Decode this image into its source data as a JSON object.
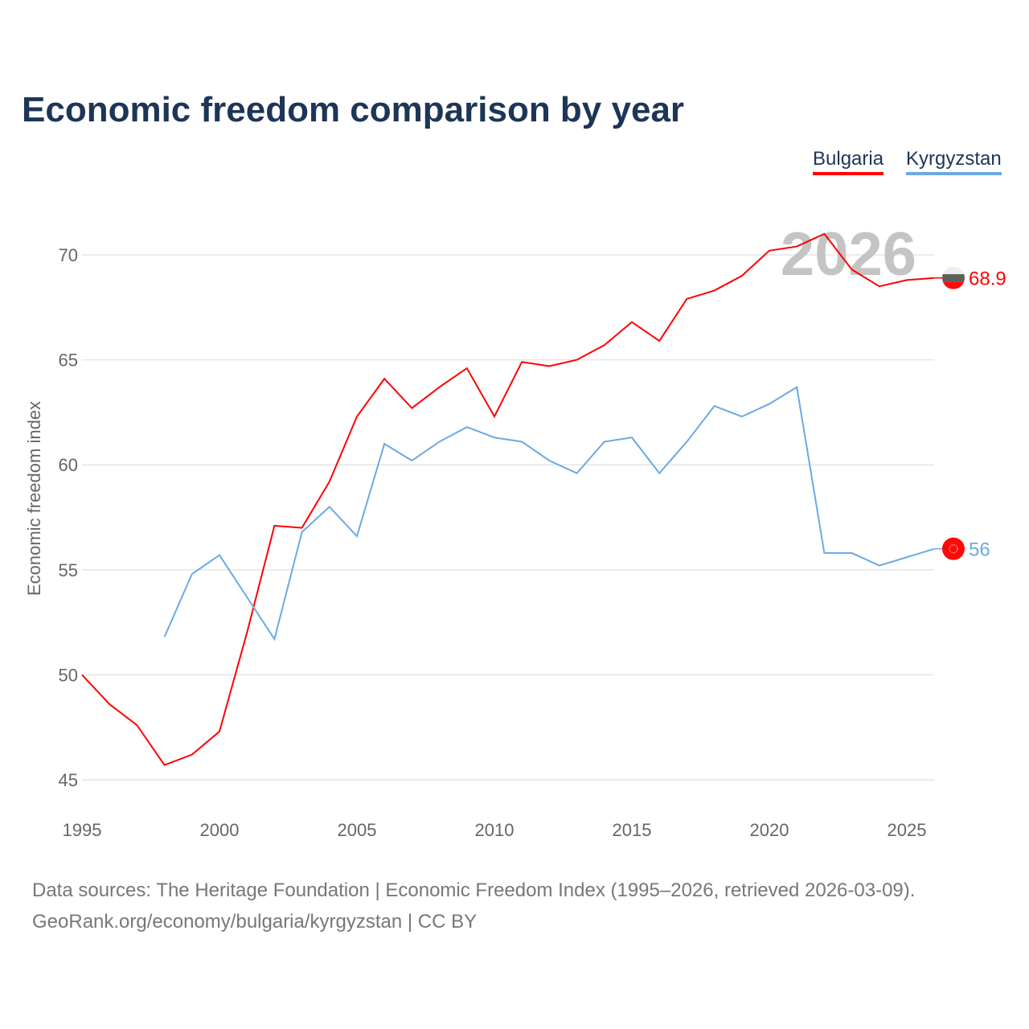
{
  "chart_data": {
    "type": "line",
    "title": "Economic freedom comparison by year",
    "ylabel": "Economic freedom index",
    "xlabel": "",
    "xlim": [
      1995,
      2026
    ],
    "ylim": [
      45,
      71.5
    ],
    "xticks": [
      1995,
      2000,
      2005,
      2010,
      2015,
      2020,
      2025
    ],
    "yticks": [
      45,
      50,
      55,
      60,
      65,
      70
    ],
    "grid": true,
    "legend_position": "top-right",
    "current_year_label": "2026",
    "series": [
      {
        "name": "Bulgaria",
        "color": "#ff0000",
        "end_label": "68.9",
        "x": [
          1995,
          1996,
          1997,
          1998,
          1999,
          2000,
          2001,
          2002,
          2003,
          2004,
          2005,
          2006,
          2007,
          2008,
          2009,
          2010,
          2011,
          2012,
          2013,
          2014,
          2015,
          2016,
          2017,
          2018,
          2019,
          2020,
          2021,
          2022,
          2023,
          2024,
          2025,
          2026
        ],
        "values": [
          50.0,
          48.6,
          47.6,
          45.7,
          46.2,
          47.3,
          52.0,
          57.1,
          57.0,
          59.2,
          62.3,
          64.1,
          62.7,
          63.7,
          64.6,
          62.3,
          64.9,
          64.7,
          65.0,
          65.7,
          66.8,
          65.9,
          67.9,
          68.3,
          69.0,
          70.2,
          70.4,
          71.0,
          69.3,
          68.5,
          68.8,
          68.9
        ]
      },
      {
        "name": "Kyrgyzstan",
        "color": "#6aaae4",
        "end_label": "56",
        "x": [
          1998,
          1999,
          2000,
          2001,
          2002,
          2003,
          2004,
          2005,
          2006,
          2007,
          2008,
          2009,
          2010,
          2011,
          2012,
          2013,
          2014,
          2015,
          2016,
          2017,
          2018,
          2019,
          2020,
          2021,
          2022,
          2023,
          2024,
          2025,
          2026
        ],
        "values": [
          51.8,
          54.8,
          55.7,
          53.7,
          51.7,
          56.8,
          58.0,
          56.6,
          61.0,
          60.2,
          61.1,
          61.8,
          61.3,
          61.1,
          60.2,
          59.6,
          61.1,
          61.3,
          59.6,
          61.1,
          62.8,
          62.3,
          62.9,
          63.7,
          55.8,
          55.8,
          55.2,
          55.6,
          56.0
        ]
      }
    ]
  },
  "footer": {
    "line1": "Data sources: The Heritage Foundation | Economic Freedom Index (1995–2026, retrieved 2026-03-09).",
    "line2": "GeoRank.org/economy/bulgaria/kyrgyzstan | CC BY"
  }
}
